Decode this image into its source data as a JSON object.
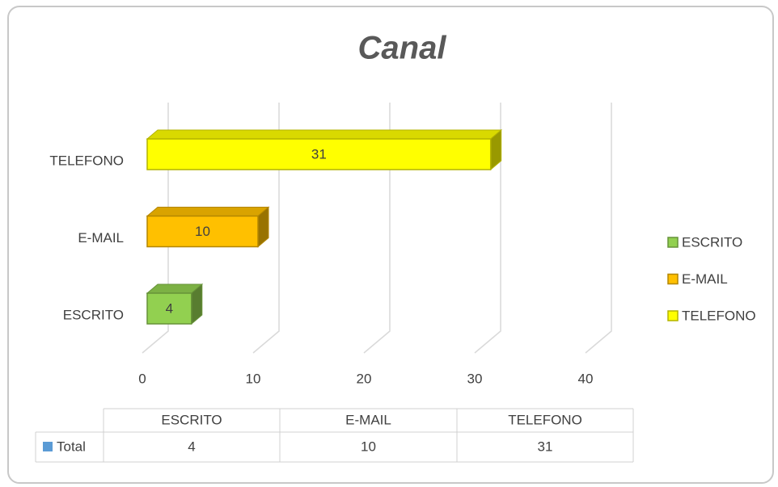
{
  "chart_data": {
    "type": "bar",
    "orientation": "horizontal",
    "title": "Canal",
    "categories": [
      "ESCRITO",
      "E-MAIL",
      "TELEFONO"
    ],
    "series": [
      {
        "name": "Total",
        "color": "#5b9bd5",
        "values": [
          4,
          10,
          31
        ]
      }
    ],
    "colors": [
      "#92d050",
      "#ffc000",
      "#ffff00"
    ],
    "xlim": [
      0,
      40
    ],
    "xticks": [
      0,
      10,
      20,
      30,
      40
    ],
    "grid": true,
    "legend": "right",
    "data_table": true
  }
}
